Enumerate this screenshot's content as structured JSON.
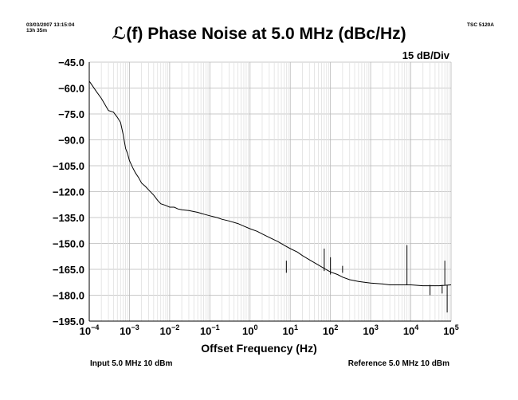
{
  "header": {
    "timestamp_line1": "03/03/2007 13:15:04",
    "timestamp_line2": "13h 35m",
    "instrument": "TSC 5120A",
    "scale_label": "15 dB/Div"
  },
  "footer": {
    "input_text": "Input 5.0 MHz 10 dBm",
    "reference_text": "Reference 5.0 MHz 10 dBm"
  },
  "chart_data": {
    "type": "line",
    "title": "ℒ(f) Phase Noise at 5.0 MHz (dBc/Hz)",
    "xlabel": "Offset Frequency (Hz)",
    "ylabel": "",
    "x_scale": "log",
    "xlim": [
      0.0001,
      100000
    ],
    "ylim": [
      -195,
      -45
    ],
    "grid": true,
    "x_ticks": [
      {
        "base": "10",
        "exp": "−4",
        "value": 0.0001
      },
      {
        "base": "10",
        "exp": "−3",
        "value": 0.001
      },
      {
        "base": "10",
        "exp": "−2",
        "value": 0.01
      },
      {
        "base": "10",
        "exp": "−1",
        "value": 0.1
      },
      {
        "base": "10",
        "exp": "0",
        "value": 1
      },
      {
        "base": "10",
        "exp": "1",
        "value": 10
      },
      {
        "base": "10",
        "exp": "2",
        "value": 100
      },
      {
        "base": "10",
        "exp": "3",
        "value": 1000
      },
      {
        "base": "10",
        "exp": "4",
        "value": 10000
      },
      {
        "base": "10",
        "exp": "5",
        "value": 100000
      }
    ],
    "y_ticks": [
      {
        "label": "−45.0",
        "value": -45
      },
      {
        "label": "−60.0",
        "value": -60
      },
      {
        "label": "−75.0",
        "value": -75
      },
      {
        "label": "−90.0",
        "value": -90
      },
      {
        "label": "−105.0",
        "value": -105
      },
      {
        "label": "−120.0",
        "value": -120
      },
      {
        "label": "−135.0",
        "value": -135
      },
      {
        "label": "−150.0",
        "value": -150
      },
      {
        "label": "−165.0",
        "value": -165
      },
      {
        "label": "−180.0",
        "value": -180
      },
      {
        "label": "−195.0",
        "value": -195
      }
    ],
    "series": [
      {
        "color": "#000000",
        "points": [
          [
            0.0001,
            -56
          ],
          [
            0.00015,
            -62
          ],
          [
            0.0002,
            -66
          ],
          [
            0.0003,
            -73
          ],
          [
            0.0004,
            -74
          ],
          [
            0.0005,
            -77
          ],
          [
            0.0006,
            -80
          ],
          [
            0.0007,
            -87
          ],
          [
            0.0008,
            -95
          ],
          [
            0.0009,
            -98
          ],
          [
            0.001,
            -102
          ],
          [
            0.0012,
            -106
          ],
          [
            0.0014,
            -109
          ],
          [
            0.0017,
            -112
          ],
          [
            0.002,
            -115
          ],
          [
            0.0025,
            -117
          ],
          [
            0.003,
            -119
          ],
          [
            0.004,
            -122
          ],
          [
            0.005,
            -125
          ],
          [
            0.006,
            -127
          ],
          [
            0.008,
            -128
          ],
          [
            0.01,
            -129
          ],
          [
            0.013,
            -129
          ],
          [
            0.016,
            -130
          ],
          [
            0.02,
            -130.5
          ],
          [
            0.03,
            -131
          ],
          [
            0.05,
            -132
          ],
          [
            0.07,
            -133
          ],
          [
            0.1,
            -134
          ],
          [
            0.15,
            -135
          ],
          [
            0.2,
            -136
          ],
          [
            0.3,
            -137
          ],
          [
            0.5,
            -138.5
          ],
          [
            0.7,
            -140
          ],
          [
            1,
            -141.5
          ],
          [
            1.5,
            -143
          ],
          [
            2,
            -144.5
          ],
          [
            3,
            -146.5
          ],
          [
            5,
            -149
          ],
          [
            7,
            -151
          ],
          [
            10,
            -153
          ],
          [
            15,
            -155
          ],
          [
            20,
            -157
          ],
          [
            30,
            -159.5
          ],
          [
            50,
            -162.5
          ],
          [
            70,
            -164.5
          ],
          [
            100,
            -166.5
          ],
          [
            150,
            -168
          ],
          [
            200,
            -169.5
          ],
          [
            300,
            -171
          ],
          [
            500,
            -172
          ],
          [
            700,
            -172.5
          ],
          [
            1000,
            -173
          ],
          [
            2000,
            -173.5
          ],
          [
            3000,
            -174
          ],
          [
            5000,
            -174
          ],
          [
            10000,
            -174
          ],
          [
            20000,
            -174.5
          ],
          [
            50000,
            -174.5
          ],
          [
            100000,
            -174
          ]
        ]
      }
    ],
    "spurs": [
      {
        "x": 8,
        "top": -160,
        "bottom": -167
      },
      {
        "x": 70,
        "top": -153,
        "bottom": -166
      },
      {
        "x": 100,
        "top": -158,
        "bottom": -168
      },
      {
        "x": 200,
        "top": -163,
        "bottom": -167
      },
      {
        "x": 8000,
        "top": -151,
        "bottom": -174
      },
      {
        "x": 30000,
        "top": -174,
        "bottom": -180
      },
      {
        "x": 60000,
        "top": -174,
        "bottom": -179
      },
      {
        "x": 70000,
        "top": -160,
        "bottom": -174
      },
      {
        "x": 80000,
        "top": -174,
        "bottom": -190
      }
    ]
  }
}
